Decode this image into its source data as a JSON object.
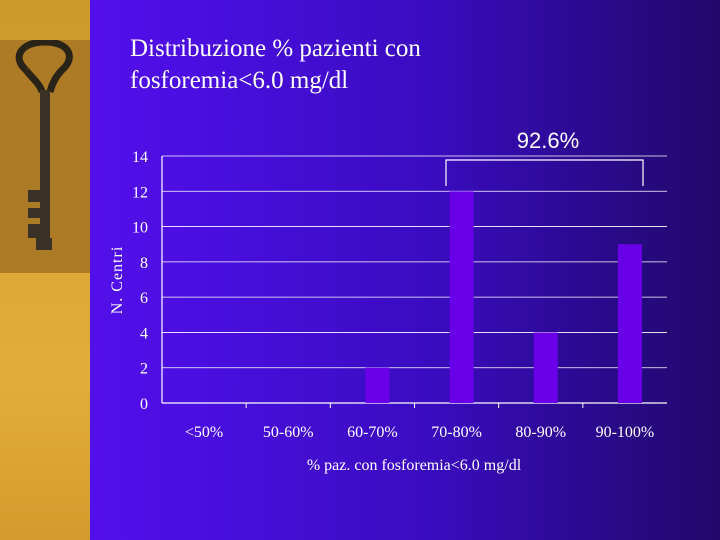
{
  "slide": {
    "title_line1": "Distribuzione % pazienti con",
    "title_line2": "fosforemia<6.0 mg/dl"
  },
  "chart_data": {
    "type": "bar",
    "categories": [
      "<50%",
      "50-60%",
      "60-70%",
      "70-80%",
      "80-90%",
      "90-100%"
    ],
    "values": [
      0,
      0,
      2,
      12,
      4,
      9
    ],
    "xlabel": "% paz. con fosforemia<6.0 mg/dl",
    "ylabel": "N. Centri",
    "ylim": [
      0,
      14
    ],
    "yticks": [
      0,
      2,
      4,
      6,
      8,
      10,
      12,
      14
    ],
    "grid": true,
    "annotation": {
      "text": "92.6%",
      "spans_categories": [
        "70-80%",
        "90-100%"
      ]
    },
    "colors": {
      "bar": "#6a00e8",
      "grid": "#ffffff",
      "background": "#4a10e0"
    }
  }
}
